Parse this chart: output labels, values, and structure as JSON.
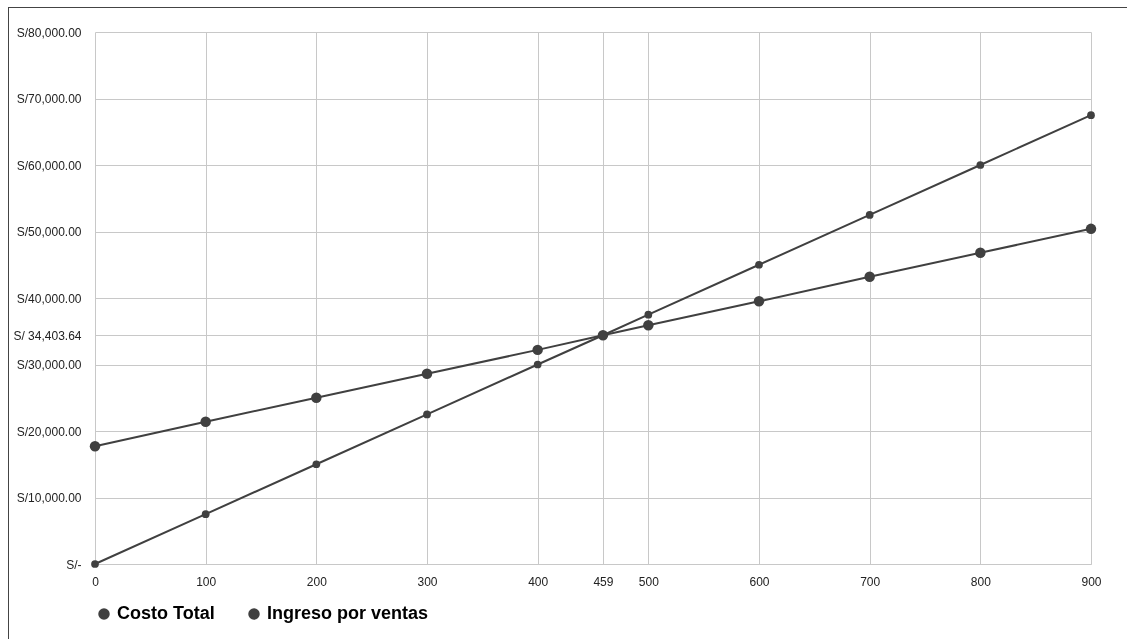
{
  "chart_data": {
    "type": "line",
    "xlim": [
      0,
      900
    ],
    "xticks": [
      0,
      100,
      200,
      300,
      400,
      459,
      500,
      600,
      700,
      800,
      900
    ],
    "ylim": [
      0,
      80000
    ],
    "yticks": [
      {
        "value": 0,
        "label": "S/-"
      },
      {
        "value": 10000,
        "label": "S/10,000.00"
      },
      {
        "value": 20000,
        "label": "S/20,000.00"
      },
      {
        "value": 30000,
        "label": "S/30,000.00"
      },
      {
        "value": 34403.64,
        "label": "S/ 34,403.64"
      },
      {
        "value": 40000,
        "label": "S/40,000.00"
      },
      {
        "value": 50000,
        "label": "S/50,000.00"
      },
      {
        "value": 60000,
        "label": "S/60,000.00"
      },
      {
        "value": 70000,
        "label": "S/70,000.00"
      },
      {
        "value": 80000,
        "label": "S/80,000.00"
      }
    ],
    "grid": true,
    "legend": "bottom",
    "marker": "circle",
    "line_style": "solid",
    "series": [
      {
        "name": "Costo Total",
        "color": "#404040",
        "x": [
          0,
          100,
          200,
          300,
          400,
          459,
          500,
          600,
          700,
          800,
          900
        ],
        "values": [
          17700,
          21400,
          25000,
          28600,
          32200,
          34403.64,
          35900,
          39500,
          43200,
          46800,
          50400
        ]
      },
      {
        "name": "Ingreso por ventas",
        "color": "#404040",
        "x": [
          0,
          100,
          200,
          300,
          400,
          459,
          500,
          600,
          700,
          800,
          900
        ],
        "values": [
          0,
          7500,
          15000,
          22500,
          30000,
          34403.64,
          37500,
          45000,
          52500,
          60000,
          67500
        ]
      }
    ]
  }
}
